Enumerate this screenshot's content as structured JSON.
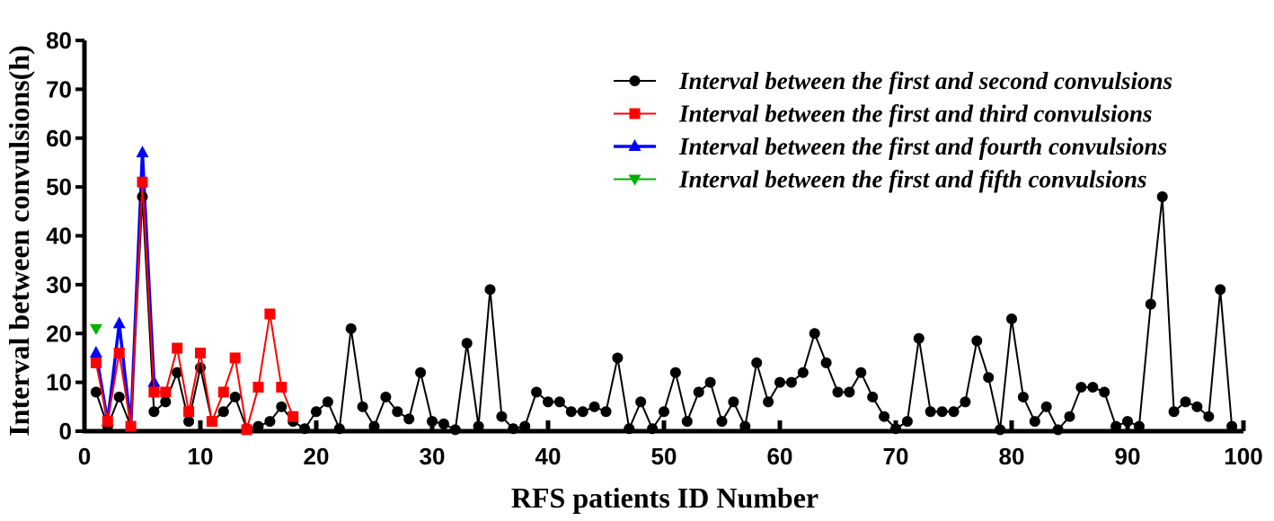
{
  "chart_data": {
    "type": "line",
    "xlabel": "RFS patients ID Number",
    "ylabel": "Interval between convulsions(h)",
    "xlim": [
      0,
      100
    ],
    "ylim": [
      0,
      80
    ],
    "x_ticks": [
      0,
      10,
      20,
      30,
      40,
      50,
      60,
      70,
      80,
      90,
      100
    ],
    "y_ticks": [
      0,
      10,
      20,
      30,
      40,
      50,
      60,
      70,
      80
    ],
    "grid": false,
    "legend_position": "top-right",
    "series": [
      {
        "name": "Interval between the first and second convulsions",
        "color": "#000000",
        "marker": "circle",
        "x": [
          1,
          2,
          3,
          4,
          5,
          6,
          7,
          8,
          9,
          10,
          11,
          12,
          13,
          14,
          15,
          16,
          17,
          18,
          19,
          20,
          21,
          22,
          23,
          24,
          25,
          26,
          27,
          28,
          29,
          30,
          31,
          32,
          33,
          34,
          35,
          36,
          37,
          38,
          39,
          40,
          41,
          42,
          43,
          44,
          45,
          46,
          47,
          48,
          49,
          50,
          51,
          52,
          53,
          54,
          55,
          56,
          57,
          58,
          59,
          60,
          61,
          62,
          63,
          64,
          65,
          66,
          67,
          68,
          69,
          70,
          71,
          72,
          73,
          74,
          75,
          76,
          77,
          78,
          79,
          80,
          81,
          82,
          83,
          84,
          85,
          86,
          87,
          88,
          89,
          90,
          91,
          92,
          93,
          94,
          95,
          96,
          97,
          98,
          99
        ],
        "values": [
          8,
          1,
          7,
          1,
          48,
          4,
          6,
          12,
          2,
          13,
          2,
          4,
          7,
          0.5,
          1,
          2,
          5,
          2,
          0.5,
          4,
          6,
          0.5,
          21,
          5,
          1,
          7,
          4,
          2.5,
          12,
          2,
          1.5,
          0.3,
          18,
          1,
          29,
          3,
          0.5,
          1,
          8,
          6,
          6,
          4,
          4,
          5,
          4,
          15,
          0.5,
          6,
          0.5,
          4,
          12,
          2,
          8,
          10,
          2,
          6,
          1,
          14,
          6,
          10,
          10,
          12,
          20,
          14,
          8,
          8,
          12,
          7,
          3,
          0.5,
          2,
          19,
          4,
          4,
          4,
          6,
          18.5,
          11,
          0.3,
          23,
          7,
          2,
          5,
          0.3,
          3,
          9,
          9,
          8,
          1,
          2,
          1,
          26,
          48,
          4,
          6,
          5,
          3,
          29,
          1
        ]
      },
      {
        "name": "Interval between the first and third convulsions",
        "color": "#ff0000",
        "marker": "square",
        "x": [
          1,
          2,
          3,
          4,
          5,
          6,
          7,
          8,
          9,
          10,
          11,
          12,
          13,
          14,
          15,
          16,
          17,
          18
        ],
        "values": [
          14,
          2,
          16,
          1,
          51,
          8,
          8,
          17,
          4,
          16,
          2,
          8,
          15,
          0.3,
          9,
          24,
          9,
          3
        ]
      },
      {
        "name": "Interval between the first and fourth convulsions",
        "color": "#0000ff",
        "marker": "triangle-up",
        "x": [
          1,
          2,
          3,
          4,
          5,
          6
        ],
        "values": [
          16,
          2,
          22,
          1,
          57,
          10
        ]
      },
      {
        "name": "Interval between the first and fifth convulsions",
        "color": "#00b000",
        "marker": "triangle-down",
        "x": [
          1
        ],
        "values": [
          21
        ]
      }
    ]
  }
}
